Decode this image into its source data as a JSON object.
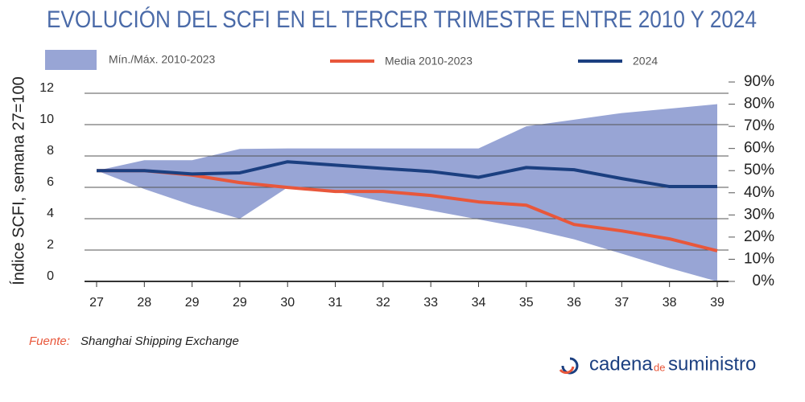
{
  "chart_data": {
    "type": "line",
    "title": "EVOLUCIÓN DEL SCFI EN EL TERCER TRIMESTRE ENTRE 2010 Y 2024",
    "y_label": "Índice SCFI, semana 27=100",
    "categories": [
      "27",
      "28",
      "29",
      "29",
      "30",
      "31",
      "32",
      "33",
      "34",
      "35",
      "36",
      "37",
      "38",
      "39"
    ],
    "ylim": [
      0,
      12
    ],
    "yticks": [
      0,
      2,
      4,
      6,
      8,
      10,
      12
    ],
    "y2lim": [
      0,
      90
    ],
    "y2ticks": [
      {
        "value": 0,
        "label": "0%"
      },
      {
        "value": 10,
        "label": "10%"
      },
      {
        "value": 20,
        "label": "20%"
      },
      {
        "value": 30,
        "label": "30%"
      },
      {
        "value": 40,
        "label": "40%"
      },
      {
        "value": 50,
        "label": "50%"
      },
      {
        "value": 60,
        "label": "60%"
      },
      {
        "value": 70,
        "label": "70%"
      },
      {
        "value": 80,
        "label": "80%"
      },
      {
        "value": 90,
        "label": "90%"
      }
    ],
    "grid": true,
    "band": {
      "name": "Mín./Máx. 2010-2023",
      "color": "#98a5d5",
      "axis": "y2",
      "low": [
        50,
        41.7,
        34.4,
        28.3,
        42.4,
        40.6,
        36,
        32,
        28,
        24,
        19,
        12.5,
        6,
        0
      ],
      "high": [
        50,
        54.7,
        54.7,
        59.8,
        60,
        60,
        60,
        60,
        60,
        70,
        73,
        76,
        78,
        80
      ]
    },
    "series": [
      {
        "name": "Media 2010-2023",
        "color": "#e8573b",
        "axis": "y2",
        "values": [
          50,
          50,
          48,
          44.6,
          42.4,
          40.6,
          40.6,
          38.8,
          35.9,
          34.4,
          25.7,
          22.8,
          19.2,
          13.8
        ]
      },
      {
        "name": "2024",
        "color": "#1b3f80",
        "axis": "y2",
        "values": [
          50,
          50,
          48.5,
          49,
          54,
          52.5,
          51,
          49.6,
          47,
          51.4,
          50.4,
          46.4,
          42.8,
          42.8
        ]
      }
    ],
    "source_label": "Fuente:",
    "source": "Shanghai Shipping Exchange",
    "logo": [
      "cadena",
      "de",
      "suministro"
    ]
  }
}
